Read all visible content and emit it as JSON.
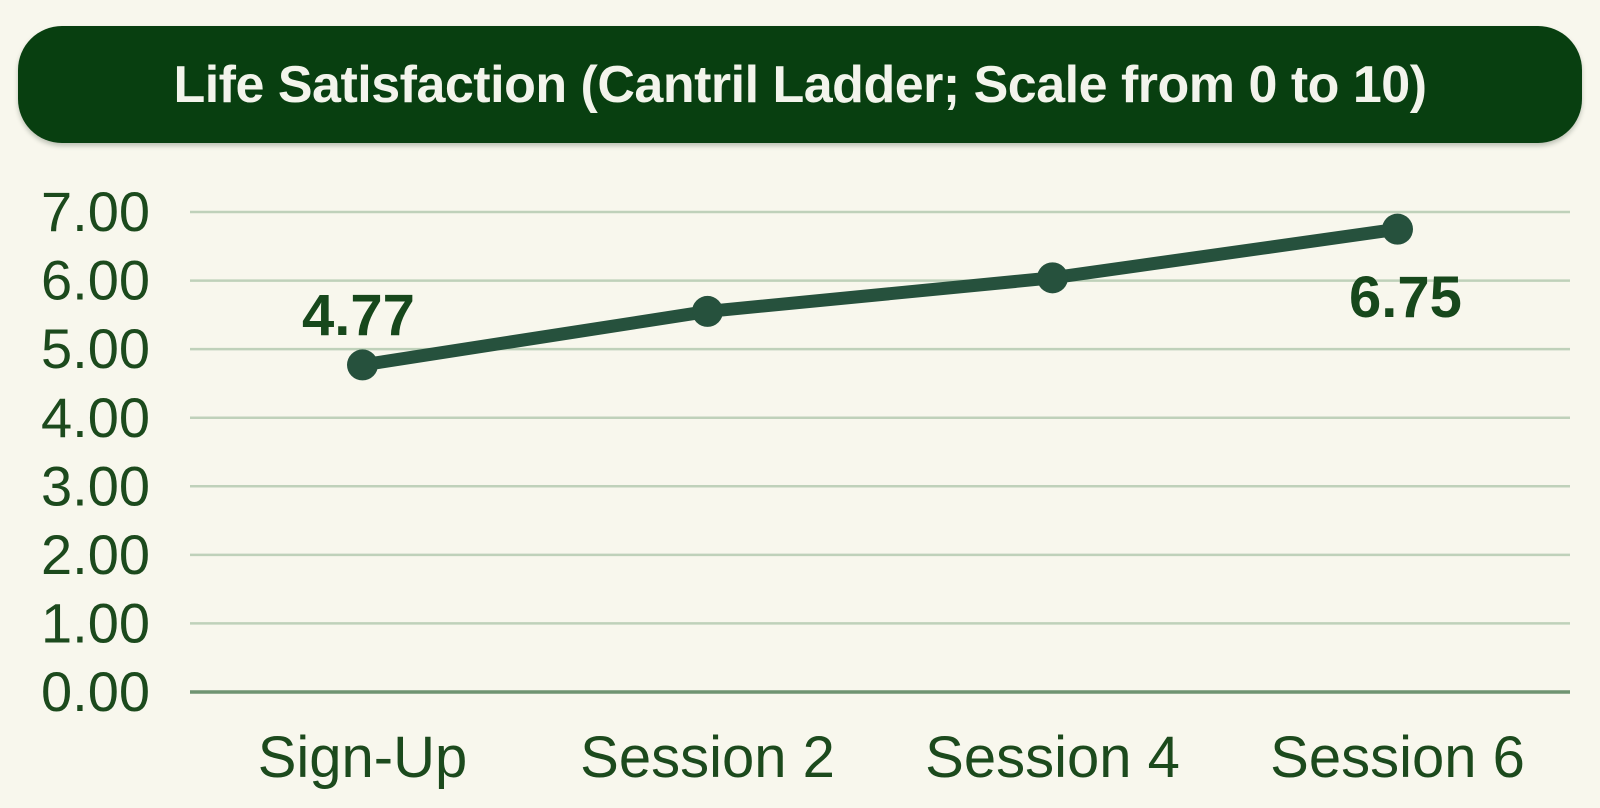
{
  "title": "Life Satisfaction (Cantril Ladder; Scale from 0 to 10)",
  "colors": {
    "background": "#f8f7ed",
    "title_bg": "#083f10",
    "title_text": "#f3f4ec",
    "axis_label": "#1c4a1d",
    "gridline": "#bfd1ba",
    "baseline": "#6f9471",
    "series": "#26513d",
    "data_label": "#17481c"
  },
  "chart_data": {
    "type": "line",
    "title": "Life Satisfaction (Cantril Ladder; Scale from 0 to 10)",
    "categories": [
      "Sign-Up",
      "Session 2",
      "Session 4",
      "Session 6"
    ],
    "values": [
      4.77,
      5.55,
      6.04,
      6.75
    ],
    "xlabel": "",
    "ylabel": "",
    "ylim": [
      0,
      7
    ],
    "ytick_step": 1,
    "ytick_labels": [
      "0.00",
      "1.00",
      "2.00",
      "3.00",
      "4.00",
      "5.00",
      "6.00",
      "7.00"
    ],
    "grid": "horizontal",
    "legend": "none",
    "annotations": [
      {
        "category": "Sign-Up",
        "text": "4.77",
        "placement": "above"
      },
      {
        "category": "Session 6",
        "text": "6.75",
        "placement": "below"
      }
    ]
  }
}
